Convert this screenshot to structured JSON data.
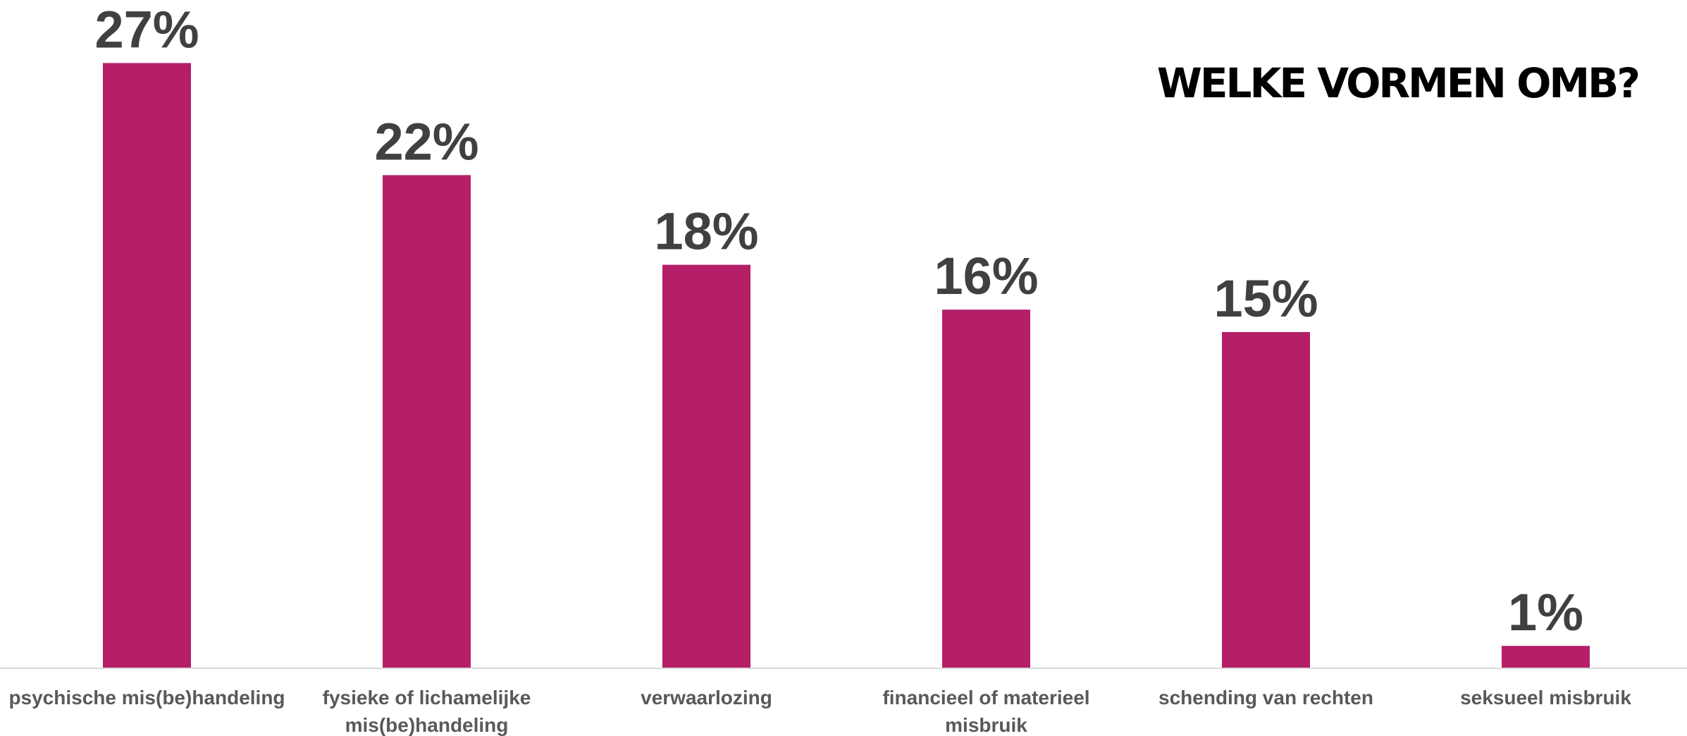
{
  "chart_data": {
    "type": "bar",
    "title": "WELKE VORMEN OMB?",
    "xlabel": "",
    "ylabel": "",
    "categories": [
      [
        "psychische mis(be)handeling"
      ],
      [
        "fysieke of lichamelijke",
        "mis(be)handeling"
      ],
      [
        "verwaarlozing"
      ],
      [
        "financieel of materieel",
        "misbruik"
      ],
      [
        "schending van rechten"
      ],
      [
        "seksueel misbruik"
      ]
    ],
    "values": [
      27,
      22,
      18,
      16,
      15,
      1
    ],
    "data_labels": [
      "27%",
      "22%",
      "18%",
      "16%",
      "15%",
      "1%"
    ],
    "unit": "%",
    "ylim": [
      0,
      27
    ],
    "grid": false,
    "legend": "none",
    "colors": {
      "bar": "#b41f68",
      "axis": "#d9d9d9",
      "data_label": "#404040",
      "category_label": "#595959",
      "title": "#000000"
    }
  }
}
